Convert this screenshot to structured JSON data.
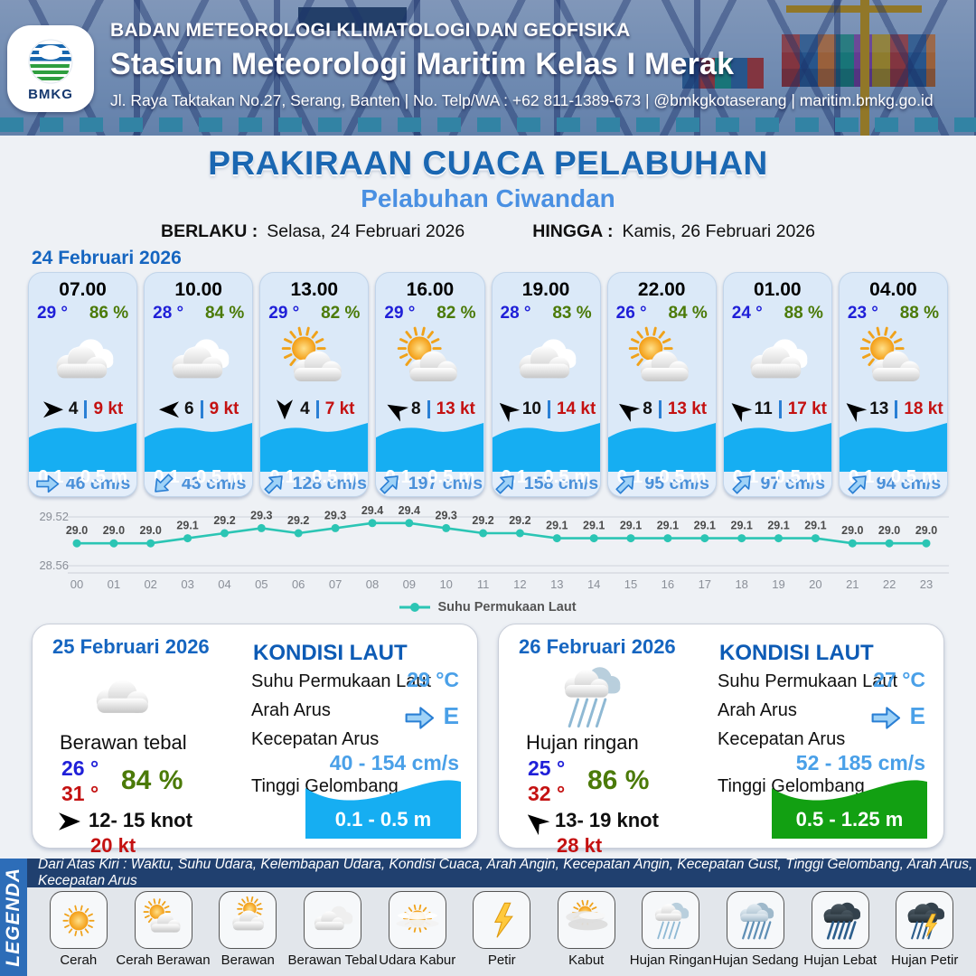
{
  "header": {
    "agency": "BADAN METEOROLOGI KLIMATOLOGI DAN GEOFISIKA",
    "station": "Stasiun Meteorologi Maritim Kelas I Merak",
    "address": "Jl. Raya Taktakan No.27, Serang, Banten | No. Telp/WA : +62 811-1389-673 | @bmkgkotaserang | maritim.bmkg.go.id",
    "logo_text": "BMKG"
  },
  "title": {
    "main": "PRAKIRAAN CUACA PELABUHAN",
    "port": "Pelabuhan Ciwandan",
    "berlaku_label": "BERLAKU :",
    "berlaku_value": "Selasa, 24 Februari 2026",
    "hingga_label": "HINGGA :",
    "hingga_value": "Kamis, 26 Februari 2026"
  },
  "day1": {
    "date": "24 Februari 2026",
    "cards": [
      {
        "time": "07.00",
        "temp": "29 °",
        "rh": "86 %",
        "icon": "cloudy",
        "wind_dir_deg": 0,
        "wind": "4",
        "gust": "9 kt",
        "wave": "0.1 - 0.5 m",
        "current_dir_deg": 0,
        "current": "46 cm/s"
      },
      {
        "time": "10.00",
        "temp": "28 °",
        "rh": "84 %",
        "icon": "cloudy",
        "wind_dir_deg": 180,
        "wind": "6",
        "gust": "9 kt",
        "wave": "0.1 - 0.5 m",
        "current_dir_deg": 135,
        "current": "43 cm/s"
      },
      {
        "time": "13.00",
        "temp": "29 °",
        "rh": "82 %",
        "icon": "sun-cloud",
        "wind_dir_deg": 90,
        "wind": "4",
        "gust": "7 kt",
        "wave": "0.1 - 0.5 m",
        "current_dir_deg": 315,
        "current": "128 cm/s"
      },
      {
        "time": "16.00",
        "temp": "29 °",
        "rh": "82 %",
        "icon": "sun-cloud",
        "wind_dir_deg": 210,
        "wind": "8",
        "gust": "13 kt",
        "wave": "0.1 - 0.5 m",
        "current_dir_deg": 315,
        "current": "197 cm/s"
      },
      {
        "time": "19.00",
        "temp": "28 °",
        "rh": "83 %",
        "icon": "cloudy",
        "wind_dir_deg": 222,
        "wind": "10",
        "gust": "14 kt",
        "wave": "0.1 - 0.5 m",
        "current_dir_deg": 315,
        "current": "158 cm/s"
      },
      {
        "time": "22.00",
        "temp": "26 °",
        "rh": "84 %",
        "icon": "sun-cloud",
        "wind_dir_deg": 215,
        "wind": "8",
        "gust": "13 kt",
        "wave": "0.1 - 0.5 m",
        "current_dir_deg": 315,
        "current": "95 cm/s"
      },
      {
        "time": "01.00",
        "temp": "24 °",
        "rh": "88 %",
        "icon": "cloudy",
        "wind_dir_deg": 220,
        "wind": "11",
        "gust": "17 kt",
        "wave": "0.1 - 0.5 m",
        "current_dir_deg": 315,
        "current": "97 cm/s"
      },
      {
        "time": "04.00",
        "temp": "23 °",
        "rh": "88 %",
        "icon": "sun-cloud",
        "wind_dir_deg": 220,
        "wind": "13",
        "gust": "18 kt",
        "wave": "0.1 - 0.5 m",
        "current_dir_deg": 315,
        "current": "94 cm/s"
      }
    ]
  },
  "chart_data": {
    "type": "line",
    "x": [
      "00",
      "01",
      "02",
      "03",
      "04",
      "05",
      "06",
      "07",
      "08",
      "09",
      "10",
      "11",
      "12",
      "13",
      "14",
      "15",
      "16",
      "17",
      "18",
      "19",
      "20",
      "21",
      "22",
      "23"
    ],
    "series": [
      {
        "name": "Suhu Permukaan Laut",
        "values": [
          29.0,
          29.0,
          29.0,
          29.1,
          29.2,
          29.3,
          29.2,
          29.3,
          29.4,
          29.4,
          29.3,
          29.2,
          29.2,
          29.1,
          29.1,
          29.1,
          29.1,
          29.1,
          29.1,
          29.1,
          29.1,
          29.0,
          29.0,
          29.0
        ]
      }
    ],
    "ylim": [
      28.56,
      29.52
    ],
    "yticks": [
      "29.52",
      "28.56"
    ],
    "line_color": "#2bc5b4",
    "grid": true,
    "legend_position": "bottom"
  },
  "day_cards": [
    {
      "date": "25 Februari 2026",
      "icon": "cloudy",
      "condition": "Berawan tebal",
      "temp_min": "26 °",
      "temp_max": "31 °",
      "rh": "84 %",
      "wind_dir_deg": 0,
      "wind_range": "12- 15 knot",
      "gust": "20 kt",
      "sea": {
        "title": "KONDISI LAUT",
        "sst_label": "Suhu Permukaan Laut",
        "sst": "29 °C",
        "arah_label": "Arah Arus",
        "arah_deg": 0,
        "arah": "E",
        "kec_label": "Kecepatan Arus",
        "kec": "40 - 154 cm/s",
        "wave_label": "Tinggi Gelombang",
        "wave": "0.1 - 0.5 m",
        "wave_color": "#16aef2"
      }
    },
    {
      "date": "26 Februari 2026",
      "icon": "rain-light",
      "condition": "Hujan ringan",
      "temp_min": "25 °",
      "temp_max": "32 °",
      "rh": "86 %",
      "wind_dir_deg": 220,
      "wind_range": "13- 19 knot",
      "gust": "28 kt",
      "sea": {
        "title": "KONDISI LAUT",
        "sst_label": "Suhu Permukaan Laut",
        "sst": "27 °C",
        "arah_label": "Arah Arus",
        "arah_deg": 0,
        "arah": "E",
        "kec_label": "Kecepatan Arus",
        "kec": "52 - 185 cm/s",
        "wave_label": "Tinggi Gelombang",
        "wave": "0.5 - 1.25 m",
        "wave_color": "#12a012"
      }
    }
  ],
  "legend": {
    "vertical_label": "LEGENDA",
    "strip": "Dari Atas Kiri : Waktu, Suhu Udara, Kelembapan Udara, Kondisi Cuaca, Arah Angin, Kecepatan Angin, Kecepatan Gust, Tinggi Gelombang, Arah Arus, Kecepatan Arus",
    "items": [
      {
        "label": "Cerah",
        "icon": "sun"
      },
      {
        "label": "Cerah Berawan",
        "icon": "sun-cloud"
      },
      {
        "label": "Berawan",
        "icon": "cloud-sun"
      },
      {
        "label": "Berawan Tebal",
        "icon": "clouds"
      },
      {
        "label": "Udara Kabur",
        "icon": "haze"
      },
      {
        "label": "Petir",
        "icon": "bolt"
      },
      {
        "label": "Kabut",
        "icon": "fog"
      },
      {
        "label": "Hujan Ringan",
        "icon": "rain-light"
      },
      {
        "label": "Hujan Sedang",
        "icon": "rain-medium"
      },
      {
        "label": "Hujan Lebat",
        "icon": "rain-heavy"
      },
      {
        "label": "Hujan Petir",
        "icon": "rain-bolt"
      }
    ]
  },
  "colors": {
    "accent_blue": "#1a67b2",
    "port_blue": "#4a90e2",
    "temp_blue": "#1f1fd8",
    "humidity_green": "#4b7a08",
    "gust_red": "#c41111",
    "current_blue": "#4a90d9",
    "wave_blue": "#16aef2",
    "wave_green": "#12a012",
    "chart_line": "#2bc5b4",
    "navy_strip": "#20406f",
    "legenda_bar": "#2d6db8"
  }
}
